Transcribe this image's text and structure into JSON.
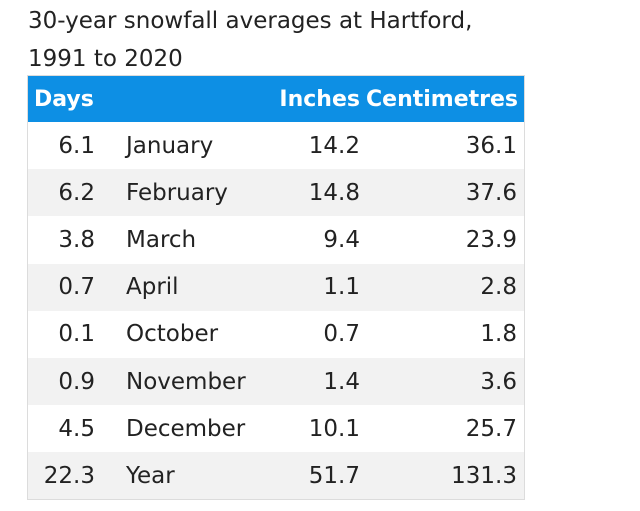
{
  "caption": {
    "line1": "30-year snowfall averages at Hartford,",
    "line2": "1991 to 2020"
  },
  "table": {
    "headers": {
      "days": "Days",
      "month": "",
      "inches": "Inches",
      "centimetres": "Centimetres"
    },
    "header_color": "#0d8fe4",
    "rows": [
      {
        "days": "6.1",
        "month": "January",
        "inches": "14.2",
        "cm": "36.1"
      },
      {
        "days": "6.2",
        "month": "February",
        "inches": "14.8",
        "cm": "37.6"
      },
      {
        "days": "3.8",
        "month": "March",
        "inches": "9.4",
        "cm": "23.9"
      },
      {
        "days": "0.7",
        "month": "April",
        "inches": "1.1",
        "cm": "2.8"
      },
      {
        "days": "0.1",
        "month": "October",
        "inches": "0.7",
        "cm": "1.8"
      },
      {
        "days": "0.9",
        "month": "November",
        "inches": "1.4",
        "cm": "3.6"
      },
      {
        "days": "4.5",
        "month": "December",
        "inches": "10.1",
        "cm": "25.7"
      },
      {
        "days": "22.3",
        "month": "Year",
        "inches": "51.7",
        "cm": "131.3"
      }
    ]
  }
}
